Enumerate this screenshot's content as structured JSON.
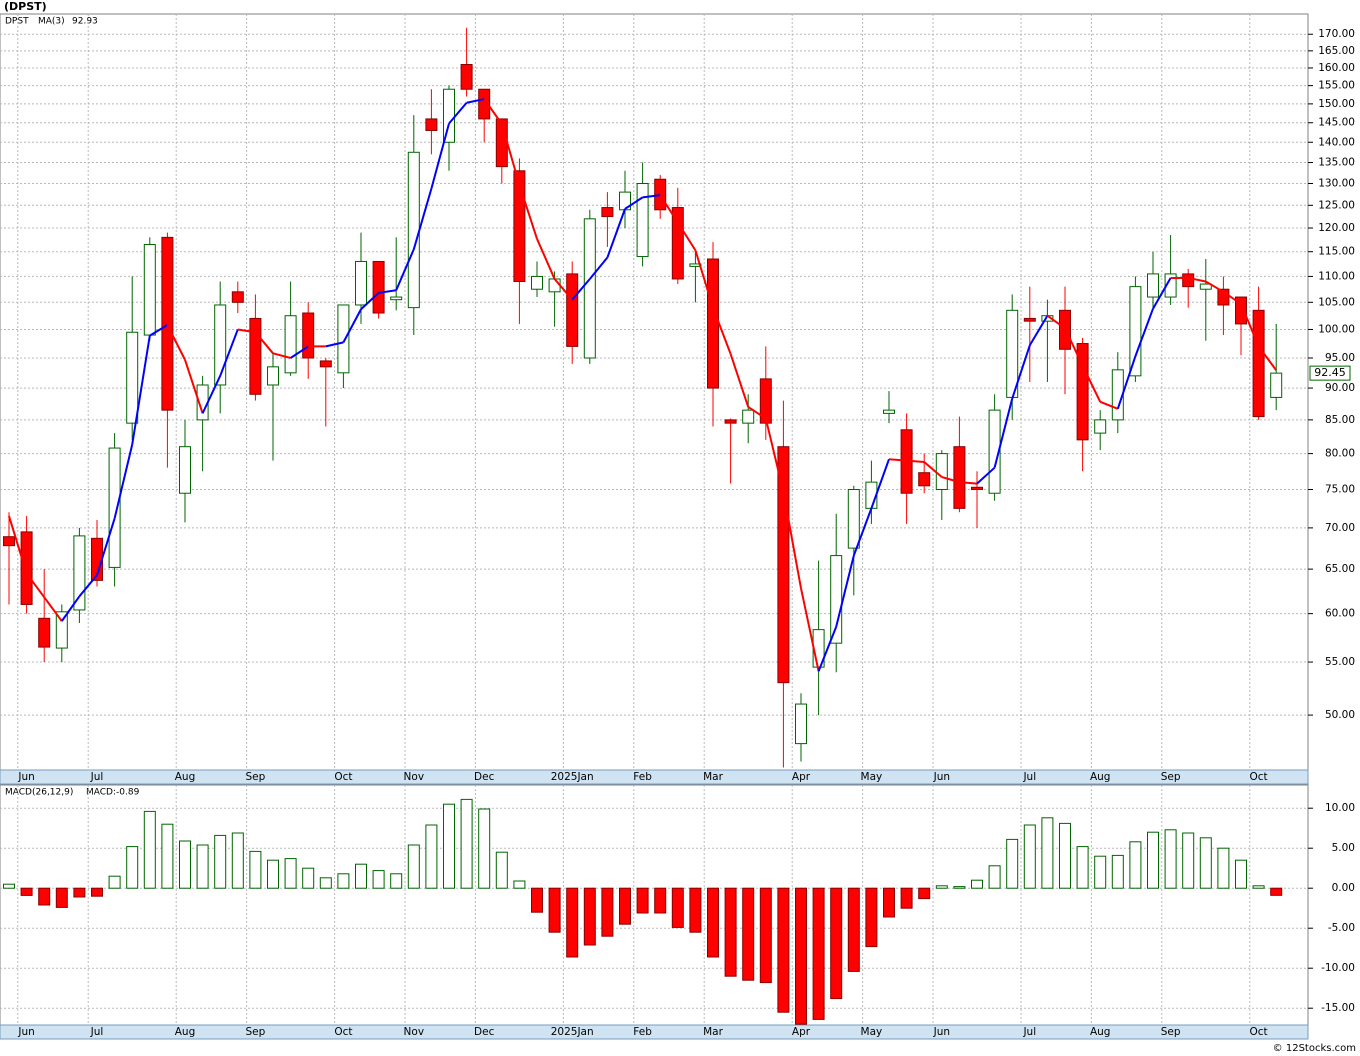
{
  "title": "(DPST)",
  "copyright": "© 12Stocks.com",
  "chart_data": [
    {
      "type": "candlestick",
      "name": "DPST",
      "name_color": "#006400",
      "categories": [
        null,
        "Jun",
        null,
        null,
        null,
        "Jul",
        null,
        null,
        null,
        null,
        "Aug",
        null,
        null,
        null,
        "Sep",
        null,
        null,
        null,
        null,
        "Oct",
        null,
        null,
        null,
        "Nov",
        null,
        null,
        null,
        "Dec",
        null,
        null,
        null,
        null,
        "2025Jan",
        null,
        null,
        null,
        "Feb",
        null,
        null,
        null,
        "Mar",
        null,
        null,
        null,
        null,
        "Apr",
        null,
        null,
        null,
        "May",
        null,
        null,
        null,
        "Jun",
        null,
        null,
        null,
        null,
        "Jul",
        null,
        null,
        null,
        "Aug",
        null,
        null,
        null,
        "Sep",
        null,
        null,
        null,
        null,
        "Oct",
        null
      ],
      "open": [
        68.9,
        69.5,
        59.5,
        56.4,
        60.4,
        68.7,
        65.2,
        84.5,
        99,
        118,
        74.5,
        85,
        90.5,
        107,
        102,
        90.5,
        92.5,
        103,
        94.5,
        92.5,
        104.5,
        113,
        105.5,
        104,
        146,
        140,
        161,
        154,
        146,
        133,
        107.5,
        107,
        110.5,
        95,
        124.5,
        124,
        114,
        131,
        124.5,
        112,
        113.5,
        85,
        84.5,
        91.5,
        81,
        47.5,
        54.5,
        56.9,
        67.5,
        72.5,
        86,
        83.5,
        77.3,
        75,
        81,
        75.3,
        74.5,
        88.5,
        102,
        101.5,
        103.5,
        97.5,
        83,
        85,
        92,
        106,
        106,
        110.5,
        107.5,
        107.5,
        106,
        103.5,
        88.5
      ],
      "high": [
        72,
        71.5,
        65,
        61,
        70,
        71,
        83,
        110,
        118,
        119,
        85,
        92,
        109,
        109,
        106.5,
        96,
        109,
        105,
        95,
        104.5,
        119,
        113,
        118,
        147,
        154,
        155,
        172,
        154,
        146,
        136,
        113,
        111,
        113,
        124,
        128,
        133,
        135,
        132,
        129,
        115,
        117,
        85.2,
        89,
        97,
        88,
        52,
        66,
        71.8,
        75.5,
        79,
        89.5,
        86,
        80,
        80.5,
        85.5,
        77.5,
        89,
        106.5,
        108,
        105.5,
        108,
        98.5,
        86.5,
        96,
        110,
        115,
        118.5,
        111.5,
        113.5,
        110,
        106,
        108,
        101
      ],
      "low": [
        61,
        60,
        55,
        55,
        59,
        63,
        63,
        82,
        98,
        78,
        70.7,
        77.5,
        86,
        103,
        88,
        79,
        92,
        91.5,
        84,
        90,
        101,
        102,
        103.5,
        99,
        137,
        133,
        152,
        140,
        130,
        101,
        106,
        100.5,
        94,
        94,
        116,
        120,
        112,
        122,
        108.5,
        105,
        84,
        75.8,
        81.5,
        82,
        45.5,
        46,
        50,
        54,
        62,
        70.5,
        84.5,
        70.5,
        74.5,
        71,
        72,
        70,
        73.5,
        85,
        91,
        91,
        89,
        77.5,
        80.5,
        83,
        91,
        104,
        104.5,
        104,
        98,
        99,
        95.5,
        85,
        86.5
      ],
      "close": [
        67.8,
        61,
        56.5,
        60.2,
        69,
        63.7,
        80.8,
        99.5,
        116.5,
        86.5,
        81,
        90.5,
        104.5,
        105,
        89,
        93.5,
        102.5,
        95,
        93.5,
        104.5,
        113,
        103,
        106,
        137.5,
        143,
        154,
        154,
        146,
        134,
        109,
        110,
        109.5,
        97,
        122,
        122.5,
        128,
        130,
        124,
        109.5,
        112.5,
        90,
        84.5,
        86.5,
        84.5,
        53,
        51,
        58.3,
        66.6,
        75,
        76,
        86.5,
        74.5,
        75.5,
        80,
        72.5,
        75,
        86.5,
        103.5,
        101.5,
        102.5,
        96.5,
        82,
        85,
        93,
        108,
        110.5,
        110.5,
        108,
        108.5,
        104.5,
        101,
        85.5,
        92.45
      ],
      "up_color": "#006400",
      "down_color": "#ff0000",
      "ma": {
        "name": "MA(3)",
        "color": "#0000ff",
        "rising_color": "#0000ff",
        "falling_color": "#ff0000",
        "values": [
          71.5,
          64.5,
          61.8,
          59.2,
          61.9,
          64.3,
          71.2,
          81.3,
          98.9,
          100.8,
          94.7,
          86,
          92,
          100,
          99.5,
          95.8,
          95,
          97,
          97,
          97.7,
          103.7,
          106.8,
          107.3,
          115.5,
          128.8,
          144.8,
          150.3,
          151.3,
          144.7,
          129.7,
          117.7,
          109.5,
          105.5,
          109.5,
          113.8,
          124.2,
          126.8,
          127.3,
          121.2,
          115.3,
          104,
          95.7,
          87,
          85.2,
          74.7,
          62.8,
          54.1,
          58.6,
          66.6,
          72.5,
          79.2,
          79,
          78.8,
          76.7,
          76,
          75.8,
          78,
          88.3,
          97.2,
          102.5,
          100.2,
          93.7,
          87.8,
          86.7,
          95.3,
          103.8,
          109.7,
          109.7,
          109,
          107,
          104.7,
          97,
          92.93
        ]
      },
      "log_scale": true,
      "grid": true,
      "ylim": [
        45.3,
        176.3
      ],
      "yticks": [
        {
          "value": 50,
          "label": "50.00"
        },
        {
          "value": 55,
          "label": "55.00"
        },
        {
          "value": 60,
          "label": "60.00"
        },
        {
          "value": 65,
          "label": "65.00"
        },
        {
          "value": 70,
          "label": "70.00"
        },
        {
          "value": 75,
          "label": "75.00"
        },
        {
          "value": 80,
          "label": "80.00"
        },
        {
          "value": 85,
          "label": "85.00"
        },
        {
          "value": 90,
          "label": "90.00"
        },
        {
          "value": 95,
          "label": "95.00"
        },
        {
          "value": 100,
          "label": "100.00"
        },
        {
          "value": 105,
          "label": "105.00"
        },
        {
          "value": 110,
          "label": "110.00"
        },
        {
          "value": 115,
          "label": "115.00"
        },
        {
          "value": 120,
          "label": "120.00"
        },
        {
          "value": 125,
          "label": "125.00"
        },
        {
          "value": 130,
          "label": "130.00"
        },
        {
          "value": 135,
          "label": "135.00"
        },
        {
          "value": 140,
          "label": "140.00"
        },
        {
          "value": 145,
          "label": "145.00"
        },
        {
          "value": 150,
          "label": "150.00"
        },
        {
          "value": 155,
          "label": "155.00"
        },
        {
          "value": 160,
          "label": "160.00"
        },
        {
          "value": 165,
          "label": "165.00"
        },
        {
          "value": 170,
          "label": "170.00"
        }
      ]
    },
    {
      "type": "bar",
      "name": "MACD(26,12,9)",
      "legend_value": "MACD:-0.89",
      "legend_color": "#0000cc",
      "categories": [
        null,
        "Jun",
        null,
        null,
        null,
        "Jul",
        null,
        null,
        null,
        null,
        "Aug",
        null,
        null,
        null,
        "Sep",
        null,
        null,
        null,
        null,
        "Oct",
        null,
        null,
        null,
        "Nov",
        null,
        null,
        null,
        "Dec",
        null,
        null,
        null,
        null,
        "2025Jan",
        null,
        null,
        null,
        "Feb",
        null,
        null,
        null,
        "Mar",
        null,
        null,
        null,
        null,
        "Apr",
        null,
        null,
        null,
        "May",
        null,
        null,
        null,
        "Jun",
        null,
        null,
        null,
        null,
        "Jul",
        null,
        null,
        null,
        "Aug",
        null,
        null,
        null,
        "Sep",
        null,
        null,
        null,
        null,
        "Oct",
        null
      ],
      "values": [
        0.5,
        -0.9,
        -2.1,
        -2.4,
        -1.1,
        -1.0,
        1.5,
        5.2,
        9.6,
        8.0,
        5.9,
        5.4,
        6.6,
        6.9,
        4.6,
        3.5,
        3.7,
        2.5,
        1.3,
        1.8,
        3.0,
        2.2,
        1.8,
        5.4,
        7.9,
        10.5,
        11.1,
        9.9,
        4.5,
        0.9,
        -3.0,
        -5.5,
        -8.6,
        -7.1,
        -6.0,
        -4.5,
        -3.1,
        -3.1,
        -4.9,
        -5.5,
        -8.6,
        -11.0,
        -11.5,
        -11.8,
        -15.5,
        -17.0,
        -16.4,
        -13.8,
        -10.4,
        -7.3,
        -3.6,
        -2.5,
        -1.3,
        0.3,
        0.2,
        1.0,
        2.8,
        6.1,
        7.9,
        8.8,
        8.1,
        5.2,
        4.0,
        4.1,
        5.8,
        7.0,
        7.3,
        6.9,
        6.3,
        5.0,
        3.5,
        0.3,
        -0.89
      ],
      "positive_color": "#006400",
      "negative_color": "#ff0000",
      "grid": true,
      "ylim": [
        -17.1,
        12.9
      ],
      "yticks": [
        {
          "value": 10,
          "label": "10.00"
        },
        {
          "value": 5,
          "label": "5.00"
        },
        {
          "value": 0,
          "label": "0.00"
        },
        {
          "value": -5,
          "label": "-5.00"
        },
        {
          "value": -10,
          "label": "-10.00"
        },
        {
          "value": -15,
          "label": "-15.00"
        }
      ]
    }
  ]
}
